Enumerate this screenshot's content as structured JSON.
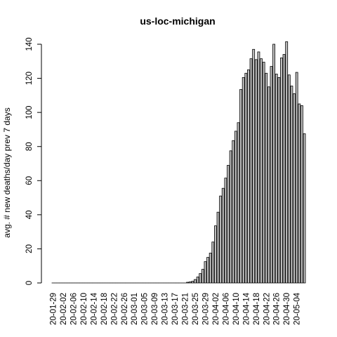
{
  "chart_data": {
    "type": "bar",
    "title": "us-loc-michigan",
    "ylabel": "avg. # new deaths/day prev  7  days",
    "xlabel": "",
    "ylim": [
      0,
      145
    ],
    "yticks": [
      0,
      20,
      40,
      60,
      80,
      100,
      120,
      140
    ],
    "xtick_labels": [
      "20-01-29",
      "20-02-02",
      "20-02-06",
      "20-02-10",
      "20-02-14",
      "20-02-18",
      "20-02-22",
      "20-02-26",
      "20-03-01",
      "20-03-05",
      "20-03-09",
      "20-03-13",
      "20-03-17",
      "20-03-21",
      "20-03-25",
      "20-03-29",
      "20-04-02",
      "20-04-06",
      "20-04-10",
      "20-04-14",
      "20-04-18",
      "20-04-22",
      "20-04-26",
      "20-04-30",
      "20-05-04"
    ],
    "bar_color": "#bebebe",
    "start_date": "20-01-29",
    "values": [
      0,
      0,
      0,
      0,
      0,
      0,
      0,
      0,
      0,
      0,
      0,
      0,
      0,
      0,
      0,
      0,
      0,
      0,
      0,
      0,
      0,
      0,
      0,
      0,
      0,
      0,
      0,
      0,
      0,
      0,
      0,
      0,
      0,
      0,
      0,
      0,
      0,
      0,
      0,
      0,
      0,
      0,
      0,
      0,
      0,
      0,
      0,
      0,
      0,
      0,
      0,
      0,
      0,
      0.4,
      0.6,
      1.0,
      2.0,
      3.5,
      5.5,
      8.0,
      12.5,
      15.0,
      17.5,
      24.0,
      33.5,
      41.5,
      51.0,
      55.5,
      61.5,
      69.0,
      77.5,
      83.5,
      89.0,
      94.0,
      113.5,
      120.5,
      123.0,
      125.0,
      131.5,
      137.0,
      131.0,
      135.5,
      131.5,
      129.5,
      123.0,
      115.0,
      127.0,
      140.0,
      122.5,
      120.5,
      132.0,
      134.0,
      141.5,
      122.0,
      115.5,
      111.0,
      123.5,
      105.0,
      104.0,
      87.5
    ]
  }
}
